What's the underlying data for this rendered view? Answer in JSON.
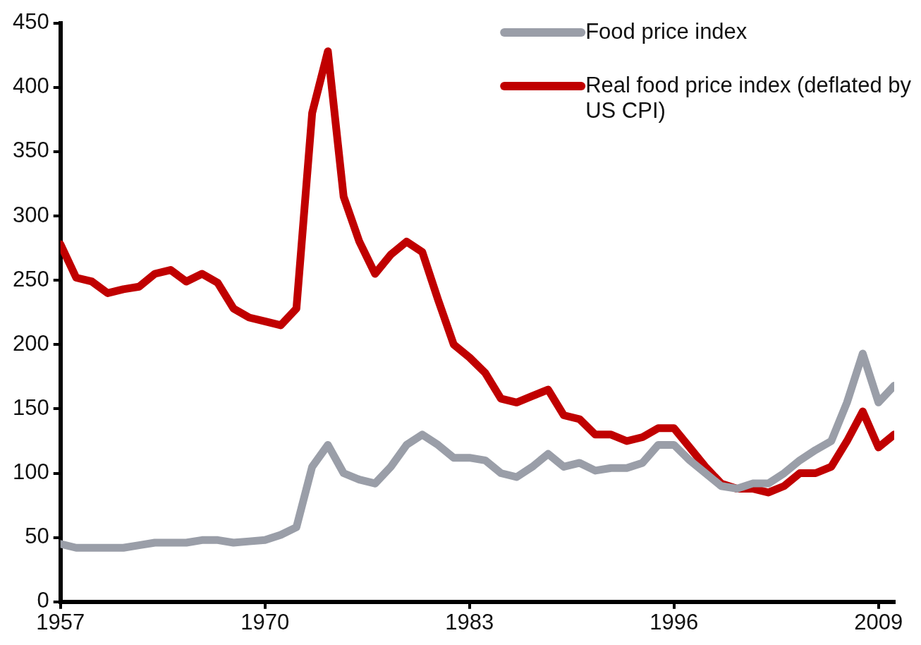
{
  "chart_data": {
    "type": "line",
    "x": [
      1957,
      1958,
      1959,
      1960,
      1961,
      1962,
      1963,
      1964,
      1965,
      1966,
      1967,
      1968,
      1969,
      1970,
      1971,
      1972,
      1973,
      1974,
      1975,
      1976,
      1977,
      1978,
      1979,
      1980,
      1981,
      1982,
      1983,
      1984,
      1985,
      1986,
      1987,
      1988,
      1989,
      1990,
      1991,
      1992,
      1993,
      1994,
      1995,
      1996,
      1997,
      1998,
      1999,
      2000,
      2001,
      2002,
      2003,
      2004,
      2005,
      2006,
      2007,
      2008,
      2009,
      2010
    ],
    "series": [
      {
        "name": "Food price index",
        "color": "#9a9ea8",
        "values": [
          45,
          42,
          42,
          42,
          42,
          44,
          46,
          46,
          46,
          48,
          48,
          46,
          47,
          48,
          52,
          58,
          105,
          122,
          100,
          95,
          92,
          105,
          122,
          130,
          122,
          112,
          112,
          110,
          100,
          97,
          105,
          115,
          105,
          108,
          102,
          104,
          104,
          108,
          122,
          122,
          110,
          100,
          90,
          88,
          92,
          92,
          100,
          110,
          118,
          125,
          155,
          193,
          155,
          168
        ]
      },
      {
        "name": "Real food price index (deflated by US CPI)",
        "color": "#c00000",
        "values": [
          278,
          252,
          249,
          240,
          243,
          245,
          255,
          258,
          249,
          255,
          248,
          228,
          221,
          218,
          215,
          228,
          380,
          428,
          315,
          280,
          255,
          270,
          280,
          272,
          235,
          200,
          190,
          178,
          158,
          155,
          160,
          165,
          145,
          142,
          130,
          130,
          125,
          128,
          135,
          135,
          120,
          105,
          92,
          88,
          88,
          85,
          90,
          100,
          100,
          105,
          125,
          148,
          120,
          130
        ]
      }
    ],
    "xlim": [
      1957,
      2010
    ],
    "xticks": [
      1957,
      1970,
      1983,
      1996,
      2009
    ],
    "ylim": [
      0,
      450
    ],
    "yticks": [
      0,
      50,
      100,
      150,
      200,
      250,
      300,
      350,
      400,
      450
    ],
    "grid": false,
    "legend": "top right"
  }
}
